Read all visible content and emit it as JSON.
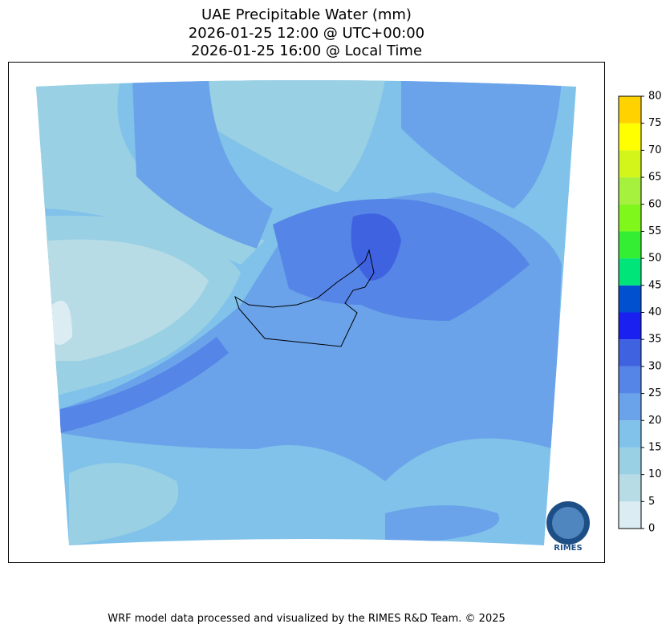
{
  "title_lines": [
    "UAE Precipitable Water (mm)",
    "2026-01-25 12:00 @ UTC+00:00",
    "2026-01-25 16:00 @ Local Time"
  ],
  "colorbar": {
    "ticks": [
      0,
      5,
      10,
      15,
      20,
      25,
      30,
      35,
      40,
      45,
      50,
      55,
      60,
      65,
      70,
      75,
      80
    ],
    "colors": [
      "#dcecf3",
      "#b8dce6",
      "#9ad0e3",
      "#80c2ea",
      "#6aa3ea",
      "#5585e6",
      "#3f63e0",
      "#1a20f0",
      "#0050d0",
      "#00e57a",
      "#33ee33",
      "#80f71a",
      "#a6f03e",
      "#d4f51a",
      "#ffff00",
      "#ffd200"
    ]
  },
  "logo": "RIMES",
  "credit": "WRF model data processed and visualized by the RIMES R&D Team. © 2025"
}
